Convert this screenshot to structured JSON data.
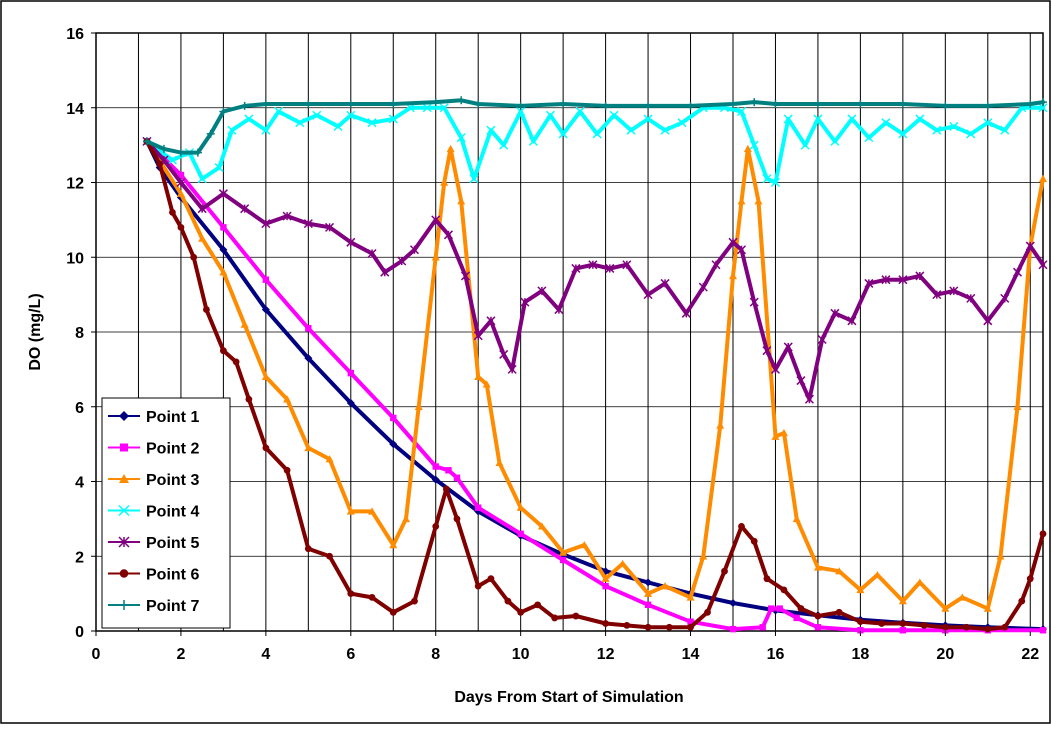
{
  "chart_data": {
    "type": "line",
    "title": "",
    "xlabel": "Days From Start of Simulation",
    "ylabel": "DO (mg/L)",
    "xlim": [
      0,
      22.3
    ],
    "ylim": [
      0,
      16
    ],
    "x_ticks": [
      0,
      2,
      4,
      6,
      8,
      10,
      12,
      14,
      16,
      18,
      20,
      22
    ],
    "y_ticks": [
      0,
      2,
      4,
      6,
      8,
      10,
      12,
      14,
      16
    ],
    "grid": "vertical",
    "legend_position": "bottom-left",
    "series": [
      {
        "name": "Point 1",
        "color": "#000080",
        "marker": "diamond",
        "points": [
          [
            1.2,
            13.1
          ],
          [
            1.5,
            12.4
          ],
          [
            2,
            11.6
          ],
          [
            3,
            10.2
          ],
          [
            4,
            8.6
          ],
          [
            5,
            7.3
          ],
          [
            6,
            6.1
          ],
          [
            7,
            5.0
          ],
          [
            8,
            4.05
          ],
          [
            9,
            3.2
          ],
          [
            10,
            2.55
          ],
          [
            11,
            2.05
          ],
          [
            12,
            1.6
          ],
          [
            13,
            1.3
          ],
          [
            14,
            1.0
          ],
          [
            15,
            0.75
          ],
          [
            16,
            0.55
          ],
          [
            17,
            0.42
          ],
          [
            18,
            0.3
          ],
          [
            19,
            0.22
          ],
          [
            20,
            0.15
          ],
          [
            21,
            0.1
          ],
          [
            22.3,
            0.05
          ]
        ]
      },
      {
        "name": "Point 2",
        "color": "#FF00FF",
        "marker": "square",
        "points": [
          [
            1.2,
            13.1
          ],
          [
            2,
            12.2
          ],
          [
            3,
            10.8
          ],
          [
            4,
            9.4
          ],
          [
            5,
            8.1
          ],
          [
            6,
            6.9
          ],
          [
            7,
            5.7
          ],
          [
            8,
            4.4
          ],
          [
            8.3,
            4.3
          ],
          [
            8.5,
            4.1
          ],
          [
            9,
            3.3
          ],
          [
            10,
            2.6
          ],
          [
            11,
            1.9
          ],
          [
            12,
            1.2
          ],
          [
            13,
            0.7
          ],
          [
            14,
            0.25
          ],
          [
            15,
            0.05
          ],
          [
            15.7,
            0.1
          ],
          [
            15.9,
            0.6
          ],
          [
            16.1,
            0.6
          ],
          [
            16.5,
            0.35
          ],
          [
            17,
            0.1
          ],
          [
            18,
            0.02
          ],
          [
            19,
            0.02
          ],
          [
            20,
            0.02
          ],
          [
            21,
            0.02
          ],
          [
            22.3,
            0.02
          ]
        ]
      },
      {
        "name": "Point 3",
        "color": "#FF8C00",
        "marker": "triangle",
        "points": [
          [
            1.2,
            13.1
          ],
          [
            2,
            11.7
          ],
          [
            2.5,
            10.5
          ],
          [
            3,
            9.6
          ],
          [
            3.5,
            8.2
          ],
          [
            4,
            6.8
          ],
          [
            4.5,
            6.2
          ],
          [
            5,
            4.9
          ],
          [
            5.5,
            4.6
          ],
          [
            6,
            3.2
          ],
          [
            6.5,
            3.2
          ],
          [
            7,
            2.3
          ],
          [
            7.3,
            3.0
          ],
          [
            7.6,
            6.0
          ],
          [
            8,
            10.0
          ],
          [
            8.2,
            12.0
          ],
          [
            8.35,
            12.9
          ],
          [
            8.6,
            11.5
          ],
          [
            9,
            6.8
          ],
          [
            9.2,
            6.6
          ],
          [
            9.5,
            4.5
          ],
          [
            10,
            3.3
          ],
          [
            10.5,
            2.8
          ],
          [
            11,
            2.1
          ],
          [
            11.5,
            2.3
          ],
          [
            12,
            1.4
          ],
          [
            12.4,
            1.8
          ],
          [
            13,
            1.0
          ],
          [
            13.4,
            1.2
          ],
          [
            14,
            0.9
          ],
          [
            14.3,
            2.0
          ],
          [
            14.7,
            5.5
          ],
          [
            15,
            9.5
          ],
          [
            15.2,
            11.5
          ],
          [
            15.35,
            12.9
          ],
          [
            15.6,
            11.5
          ],
          [
            16,
            5.2
          ],
          [
            16.2,
            5.3
          ],
          [
            16.5,
            3.0
          ],
          [
            17,
            1.7
          ],
          [
            17.5,
            1.6
          ],
          [
            18,
            1.1
          ],
          [
            18.4,
            1.5
          ],
          [
            19,
            0.8
          ],
          [
            19.4,
            1.3
          ],
          [
            20,
            0.6
          ],
          [
            20.4,
            0.9
          ],
          [
            21,
            0.6
          ],
          [
            21.3,
            2.0
          ],
          [
            21.7,
            6.0
          ],
          [
            22,
            10.3
          ],
          [
            22.3,
            12.1
          ]
        ]
      },
      {
        "name": "Point 4",
        "color": "#00FFFF",
        "marker": "x",
        "points": [
          [
            1.2,
            13.1
          ],
          [
            1.8,
            12.6
          ],
          [
            2.2,
            12.8
          ],
          [
            2.5,
            12.1
          ],
          [
            2.9,
            12.4
          ],
          [
            3.2,
            13.4
          ],
          [
            3.6,
            13.7
          ],
          [
            4,
            13.4
          ],
          [
            4.3,
            13.9
          ],
          [
            4.8,
            13.6
          ],
          [
            5.2,
            13.8
          ],
          [
            5.7,
            13.5
          ],
          [
            6,
            13.8
          ],
          [
            6.5,
            13.6
          ],
          [
            7,
            13.7
          ],
          [
            7.4,
            14.0
          ],
          [
            7.8,
            14.0
          ],
          [
            8.2,
            14.0
          ],
          [
            8.6,
            13.2
          ],
          [
            8.9,
            12.1
          ],
          [
            9.3,
            13.4
          ],
          [
            9.6,
            13.0
          ],
          [
            10,
            13.9
          ],
          [
            10.3,
            13.1
          ],
          [
            10.7,
            13.8
          ],
          [
            11,
            13.3
          ],
          [
            11.4,
            13.9
          ],
          [
            11.8,
            13.3
          ],
          [
            12.2,
            13.8
          ],
          [
            12.6,
            13.4
          ],
          [
            13,
            13.7
          ],
          [
            13.4,
            13.4
          ],
          [
            13.8,
            13.6
          ],
          [
            14.3,
            14.0
          ],
          [
            14.8,
            14.0
          ],
          [
            15.2,
            13.9
          ],
          [
            15.5,
            13.0
          ],
          [
            15.8,
            12.1
          ],
          [
            16,
            12.0
          ],
          [
            16.3,
            13.7
          ],
          [
            16.7,
            13.0
          ],
          [
            17,
            13.7
          ],
          [
            17.4,
            13.1
          ],
          [
            17.8,
            13.7
          ],
          [
            18.2,
            13.2
          ],
          [
            18.6,
            13.6
          ],
          [
            19,
            13.3
          ],
          [
            19.4,
            13.7
          ],
          [
            19.8,
            13.4
          ],
          [
            20.2,
            13.5
          ],
          [
            20.6,
            13.3
          ],
          [
            21,
            13.6
          ],
          [
            21.4,
            13.4
          ],
          [
            21.8,
            14.0
          ],
          [
            22.3,
            14.0
          ]
        ]
      },
      {
        "name": "Point 5",
        "color": "#800080",
        "marker": "star",
        "points": [
          [
            1.2,
            13.1
          ],
          [
            1.6,
            12.6
          ],
          [
            2,
            12.0
          ],
          [
            2.5,
            11.3
          ],
          [
            3,
            11.7
          ],
          [
            3.5,
            11.3
          ],
          [
            4,
            10.9
          ],
          [
            4.5,
            11.1
          ],
          [
            5,
            10.9
          ],
          [
            5.5,
            10.8
          ],
          [
            6,
            10.4
          ],
          [
            6.5,
            10.1
          ],
          [
            6.8,
            9.6
          ],
          [
            7.2,
            9.9
          ],
          [
            7.5,
            10.2
          ],
          [
            8,
            11.0
          ],
          [
            8.3,
            10.6
          ],
          [
            8.7,
            9.5
          ],
          [
            9,
            7.9
          ],
          [
            9.3,
            8.3
          ],
          [
            9.6,
            7.4
          ],
          [
            9.8,
            7.0
          ],
          [
            10.1,
            8.8
          ],
          [
            10.5,
            9.1
          ],
          [
            10.9,
            8.6
          ],
          [
            11.3,
            9.7
          ],
          [
            11.7,
            9.8
          ],
          [
            12.1,
            9.7
          ],
          [
            12.5,
            9.8
          ],
          [
            13,
            9.0
          ],
          [
            13.4,
            9.3
          ],
          [
            13.9,
            8.5
          ],
          [
            14.3,
            9.2
          ],
          [
            14.6,
            9.8
          ],
          [
            15,
            10.4
          ],
          [
            15.2,
            10.2
          ],
          [
            15.5,
            8.8
          ],
          [
            15.8,
            7.5
          ],
          [
            16,
            7.0
          ],
          [
            16.3,
            7.6
          ],
          [
            16.6,
            6.7
          ],
          [
            16.8,
            6.2
          ],
          [
            17.1,
            7.8
          ],
          [
            17.4,
            8.5
          ],
          [
            17.8,
            8.3
          ],
          [
            18.2,
            9.3
          ],
          [
            18.6,
            9.4
          ],
          [
            19,
            9.4
          ],
          [
            19.4,
            9.5
          ],
          [
            19.8,
            9.0
          ],
          [
            20.2,
            9.1
          ],
          [
            20.6,
            8.9
          ],
          [
            21,
            8.3
          ],
          [
            21.4,
            8.9
          ],
          [
            21.7,
            9.6
          ],
          [
            22,
            10.3
          ],
          [
            22.3,
            9.8
          ]
        ]
      },
      {
        "name": "Point 6",
        "color": "#800000",
        "marker": "circle",
        "points": [
          [
            1.2,
            13.1
          ],
          [
            1.5,
            12.5
          ],
          [
            1.8,
            11.2
          ],
          [
            2,
            10.8
          ],
          [
            2.3,
            10.0
          ],
          [
            2.6,
            8.6
          ],
          [
            3,
            7.5
          ],
          [
            3.3,
            7.2
          ],
          [
            3.6,
            6.2
          ],
          [
            4,
            4.9
          ],
          [
            4.5,
            4.3
          ],
          [
            5,
            2.2
          ],
          [
            5.5,
            2.0
          ],
          [
            6,
            1.0
          ],
          [
            6.5,
            0.9
          ],
          [
            7,
            0.5
          ],
          [
            7.5,
            0.8
          ],
          [
            8,
            2.8
          ],
          [
            8.25,
            3.8
          ],
          [
            8.5,
            3.0
          ],
          [
            9,
            1.2
          ],
          [
            9.3,
            1.4
          ],
          [
            9.7,
            0.8
          ],
          [
            10,
            0.5
          ],
          [
            10.4,
            0.7
          ],
          [
            10.8,
            0.35
          ],
          [
            11.3,
            0.4
          ],
          [
            12,
            0.2
          ],
          [
            12.5,
            0.15
          ],
          [
            13,
            0.1
          ],
          [
            13.5,
            0.1
          ],
          [
            14,
            0.1
          ],
          [
            14.4,
            0.5
          ],
          [
            14.8,
            1.6
          ],
          [
            15.2,
            2.8
          ],
          [
            15.5,
            2.4
          ],
          [
            15.8,
            1.4
          ],
          [
            16.2,
            1.1
          ],
          [
            16.6,
            0.6
          ],
          [
            17,
            0.4
          ],
          [
            17.5,
            0.5
          ],
          [
            18,
            0.25
          ],
          [
            18.5,
            0.2
          ],
          [
            19,
            0.2
          ],
          [
            19.5,
            0.15
          ],
          [
            20,
            0.1
          ],
          [
            20.5,
            0.1
          ],
          [
            21,
            0.05
          ],
          [
            21.4,
            0.1
          ],
          [
            21.8,
            0.8
          ],
          [
            22,
            1.4
          ],
          [
            22.3,
            2.6
          ]
        ]
      },
      {
        "name": "Point 7",
        "color": "#008080",
        "marker": "plus",
        "points": [
          [
            1.2,
            13.1
          ],
          [
            1.6,
            12.9
          ],
          [
            2,
            12.8
          ],
          [
            2.4,
            12.8
          ],
          [
            2.7,
            13.3
          ],
          [
            3,
            13.9
          ],
          [
            3.5,
            14.05
          ],
          [
            4,
            14.1
          ],
          [
            5,
            14.1
          ],
          [
            6,
            14.1
          ],
          [
            7,
            14.1
          ],
          [
            8,
            14.15
          ],
          [
            8.6,
            14.2
          ],
          [
            9,
            14.1
          ],
          [
            10,
            14.05
          ],
          [
            11,
            14.1
          ],
          [
            12,
            14.05
          ],
          [
            13,
            14.05
          ],
          [
            14,
            14.05
          ],
          [
            15,
            14.1
          ],
          [
            15.5,
            14.15
          ],
          [
            16,
            14.1
          ],
          [
            17,
            14.1
          ],
          [
            18,
            14.1
          ],
          [
            19,
            14.1
          ],
          [
            20,
            14.05
          ],
          [
            21,
            14.05
          ],
          [
            22,
            14.1
          ],
          [
            22.3,
            14.15
          ]
        ]
      }
    ]
  }
}
